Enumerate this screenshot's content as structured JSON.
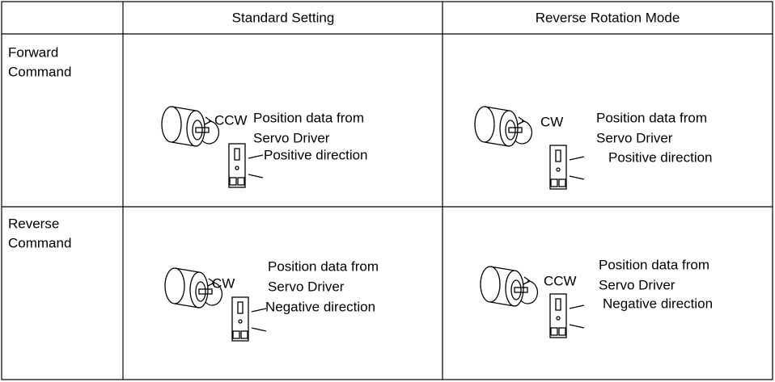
{
  "table": {
    "header": [
      "Standard Setting",
      "Reverse Rotation Mode"
    ],
    "rows": [
      {
        "label": [
          "Forward",
          "Command"
        ],
        "cells": [
          {
            "rotation": "CCW",
            "position_text": [
              "Position data from",
              "Servo Driver"
            ],
            "direction": "Positive direction"
          },
          {
            "rotation": "CW",
            "position_text": [
              "Position data from",
              "Servo Driver"
            ],
            "direction": "Positive direction"
          }
        ]
      },
      {
        "label": [
          "Reverse",
          "Command"
        ],
        "cells": [
          {
            "rotation": "CW",
            "position_text": [
              "Position data from",
              "Servo Driver"
            ],
            "direction": "Negative direction"
          },
          {
            "rotation": "CCW",
            "position_text": [
              "Position data from",
              "Servo Driver"
            ],
            "direction": "Negative direction"
          }
        ]
      }
    ]
  }
}
